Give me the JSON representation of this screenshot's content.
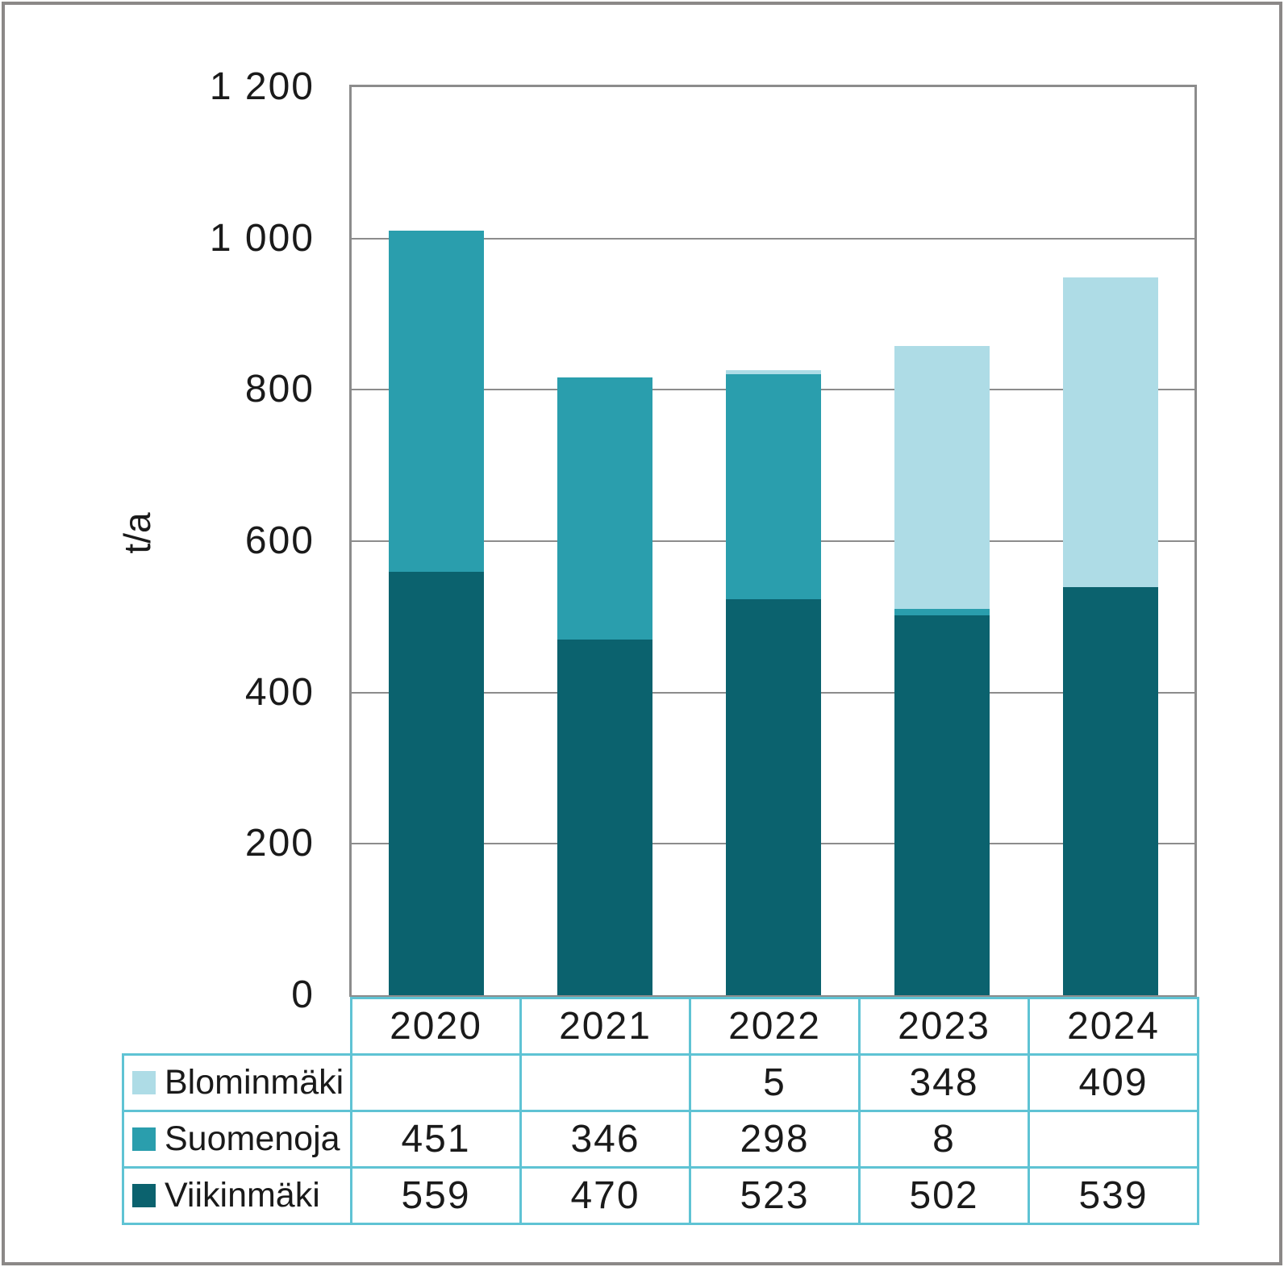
{
  "chart_data": {
    "type": "bar",
    "stacked": true,
    "title": "",
    "categories": [
      "2020",
      "2021",
      "2022",
      "2023",
      "2024"
    ],
    "series": [
      {
        "name": "Blominmäki",
        "color": "#aedce6",
        "values": [
          null,
          null,
          5,
          348,
          409
        ]
      },
      {
        "name": "Suomenoja",
        "color": "#2a9ead",
        "values": [
          451,
          346,
          298,
          8,
          null
        ]
      },
      {
        "name": "Viikinmäki",
        "color": "#0b626e",
        "values": [
          559,
          470,
          523,
          502,
          539
        ]
      }
    ],
    "xlabel": "",
    "ylabel": "t/a",
    "ylim": [
      0,
      1200
    ],
    "ytick_interval": 200,
    "ytick_labels": [
      "0",
      "200",
      "400",
      "600",
      "800",
      "1 000",
      "1 200"
    ],
    "grid": true,
    "legend_position": "table-below-left"
  },
  "colors": {
    "axis_frame": "#8c8c8c",
    "gridline": "#8c8c8c",
    "table_border": "#5fc3d4",
    "outer_frame": "#8b8887",
    "text": "#1a1a1a",
    "background": "#ffffff"
  }
}
